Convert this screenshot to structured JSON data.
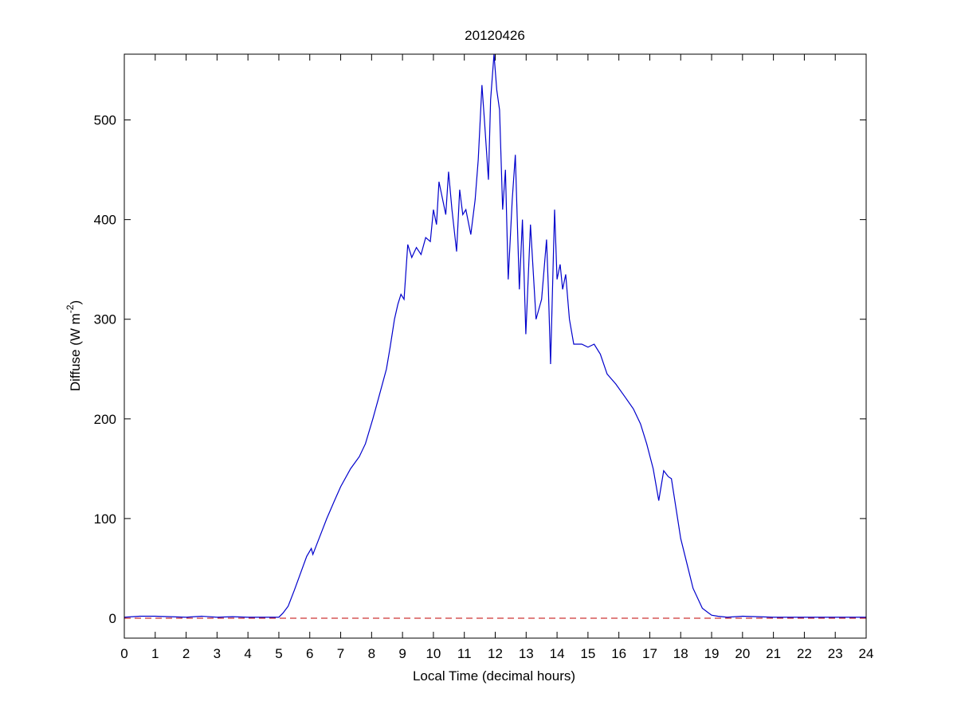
{
  "chart_data": {
    "type": "line",
    "title": "20120426",
    "xlabel": "Local Time (decimal hours)",
    "ylabel": [
      "Diffuse (W m",
      "-2",
      ")"
    ],
    "color": "#0000cc",
    "reference_line": {
      "value": 0,
      "color": "#c00000",
      "style": "dashed"
    },
    "xlim": [
      0,
      24
    ],
    "ylim": [
      -20,
      566
    ],
    "xticks": [
      0,
      1,
      2,
      3,
      4,
      5,
      6,
      7,
      8,
      9,
      10,
      11,
      12,
      13,
      14,
      15,
      16,
      17,
      18,
      19,
      20,
      21,
      22,
      23,
      24
    ],
    "yticks": [
      0,
      100,
      200,
      300,
      400,
      500
    ],
    "x": [
      0,
      0.5,
      1,
      1.5,
      2,
      2.5,
      3,
      3.5,
      4,
      4.5,
      5,
      5.13,
      5.3,
      5.5,
      5.7,
      5.9,
      6.05,
      6.1,
      6.2,
      6.4,
      6.55,
      6.8,
      7.0,
      7.32,
      7.6,
      7.8,
      8.04,
      8.2,
      8.48,
      8.6,
      8.74,
      8.85,
      8.95,
      9.05,
      9.17,
      9.3,
      9.45,
      9.6,
      9.75,
      9.9,
      10.0,
      10.1,
      10.18,
      10.3,
      10.4,
      10.49,
      10.6,
      10.75,
      10.85,
      10.95,
      11.05,
      11.21,
      11.35,
      11.45,
      11.57,
      11.65,
      11.78,
      11.85,
      11.96,
      12.05,
      12.14,
      12.24,
      12.33,
      12.42,
      12.55,
      12.65,
      12.78,
      12.88,
      12.99,
      13.14,
      13.32,
      13.5,
      13.66,
      13.72,
      13.79,
      13.92,
      14.0,
      14.1,
      14.18,
      14.28,
      14.4,
      14.54,
      14.8,
      15.0,
      15.2,
      15.4,
      15.62,
      15.9,
      16.2,
      16.47,
      16.7,
      16.9,
      17.11,
      17.29,
      17.45,
      17.6,
      17.7,
      17.85,
      18.0,
      18.2,
      18.4,
      18.7,
      19.0,
      19.2,
      19.5,
      20,
      21,
      22,
      23,
      24
    ],
    "values": [
      1,
      2,
      2,
      1.5,
      1,
      2,
      1,
      1.5,
      1,
      1,
      1,
      5,
      12,
      28,
      45,
      62,
      70,
      64,
      72,
      88,
      100,
      118,
      132,
      150,
      162,
      175,
      200,
      218,
      250,
      272,
      300,
      315,
      325,
      320,
      375,
      362,
      372,
      365,
      382,
      378,
      410,
      395,
      438,
      420,
      405,
      448,
      410,
      368,
      430,
      405,
      410,
      385,
      420,
      460,
      535,
      500,
      440,
      520,
      566,
      530,
      510,
      410,
      450,
      340,
      420,
      465,
      330,
      400,
      285,
      395,
      300,
      320,
      380,
      330,
      255,
      410,
      340,
      355,
      330,
      345,
      300,
      275,
      275,
      272,
      275,
      265,
      245,
      235,
      222,
      210,
      195,
      175,
      150,
      118,
      148,
      142,
      140,
      110,
      80,
      55,
      30,
      10,
      3,
      2,
      1,
      2,
      1,
      1,
      1,
      1
    ]
  }
}
